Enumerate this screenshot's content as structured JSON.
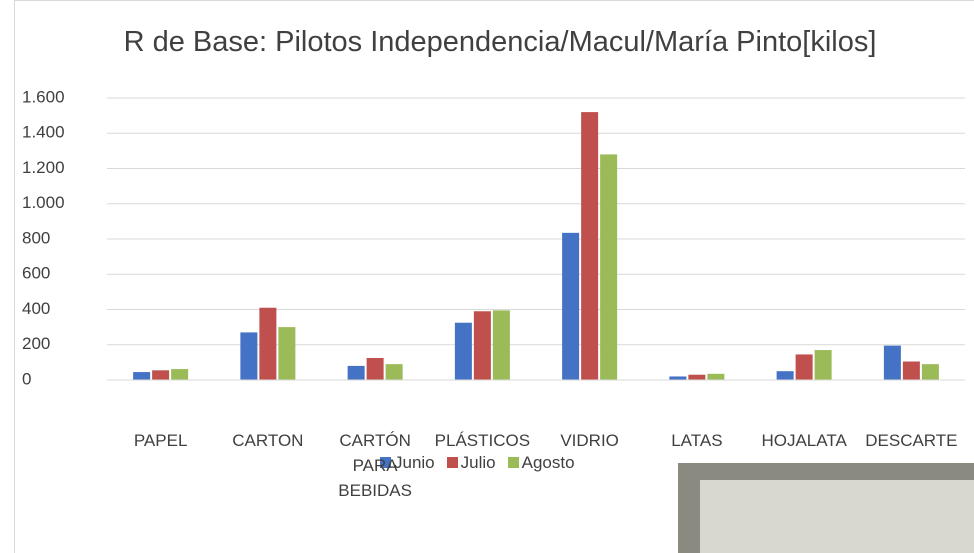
{
  "chart_data": {
    "type": "bar",
    "title": "R de Base: Pilotos Independencia/Macul/María Pinto[kilos]",
    "categories": [
      "PAPEL",
      "CARTON",
      "CARTÓN PARA BEBIDAS",
      "PLÁSTICOS",
      "VIDRIO",
      "LATAS",
      "HOJALATA",
      "DESCARTE"
    ],
    "series": [
      {
        "name": "Junio",
        "color": "#4472c4",
        "values": [
          45,
          270,
          80,
          325,
          835,
          20,
          50,
          195
        ]
      },
      {
        "name": "Julio",
        "color": "#c0504d",
        "values": [
          55,
          410,
          125,
          390,
          1520,
          30,
          145,
          105
        ]
      },
      {
        "name": "Agosto",
        "color": "#9bbb59",
        "values": [
          62,
          300,
          90,
          395,
          1280,
          35,
          170,
          90
        ]
      }
    ],
    "ylim": [
      0,
      1600
    ],
    "yticks": [
      0,
      200,
      400,
      600,
      800,
      {
        "value": 1000,
        "label": "1.000"
      },
      {
        "value": 1200,
        "label": "1.200"
      },
      {
        "value": 1400,
        "label": "1.400"
      },
      {
        "value": 1600,
        "label": "1.600"
      }
    ],
    "grid": true,
    "legend": "bottom"
  }
}
